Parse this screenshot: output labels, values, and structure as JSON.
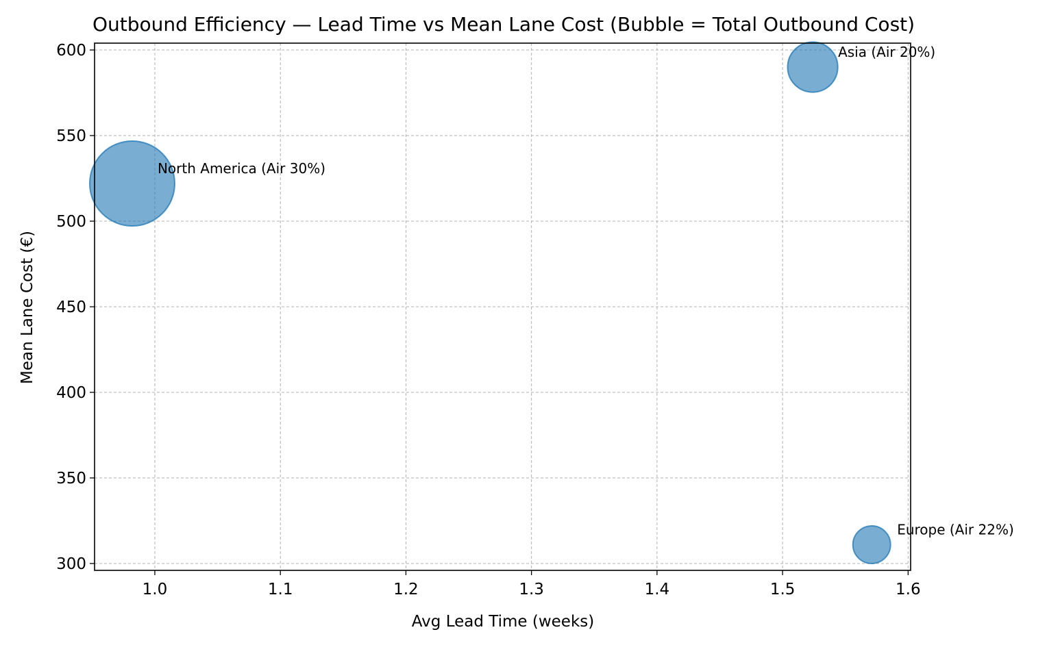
{
  "chart_data": {
    "type": "scatter",
    "title": "Outbound Efficiency — Lead Time vs Mean Lane Cost (Bubble = Total Outbound Cost)",
    "xlabel": "Avg Lead Time (weeks)",
    "ylabel": "Mean Lane Cost (€)",
    "xlim": [
      0.952,
      1.602
    ],
    "ylim": [
      296,
      604
    ],
    "x_ticks": [
      1.0,
      1.1,
      1.2,
      1.3,
      1.4,
      1.5,
      1.6
    ],
    "x_tick_labels": [
      "1.0",
      "1.1",
      "1.2",
      "1.3",
      "1.4",
      "1.5",
      "1.6"
    ],
    "y_ticks": [
      300,
      350,
      400,
      450,
      500,
      550,
      600
    ],
    "y_tick_labels": [
      "300",
      "350",
      "400",
      "450",
      "500",
      "550",
      "600"
    ],
    "grid": true,
    "bubble_color": "#1f77b4",
    "points": [
      {
        "x": 0.982,
        "y": 522,
        "bubble_rel": 1.0,
        "label": "North America (Air 30%)"
      },
      {
        "x": 1.524,
        "y": 590,
        "bubble_rel": 0.348,
        "label": "Asia (Air 20%)"
      },
      {
        "x": 1.571,
        "y": 311,
        "bubble_rel": 0.196,
        "label": "Europe (Air 22%)"
      }
    ]
  }
}
